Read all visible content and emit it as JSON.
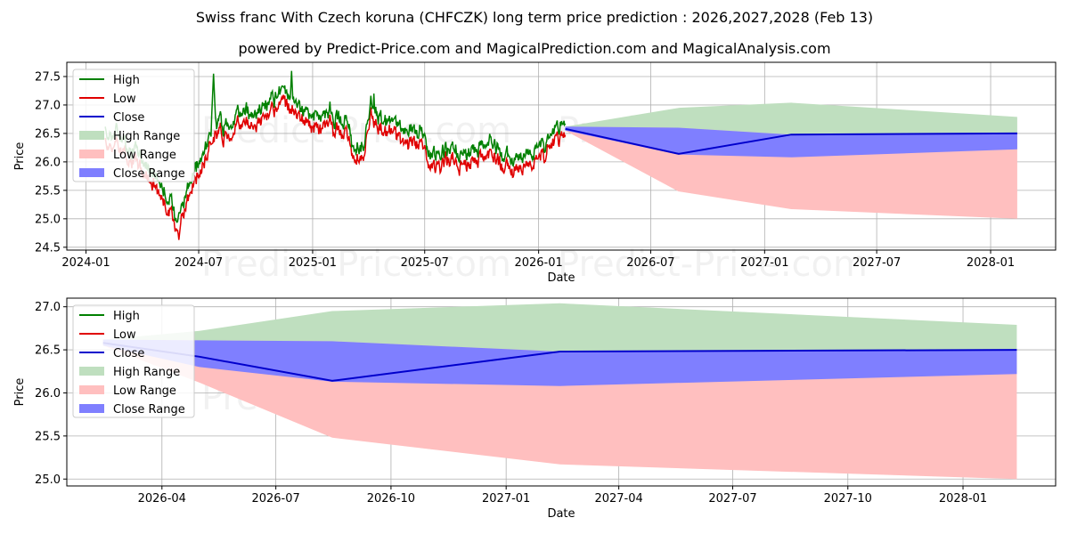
{
  "chart_title": "Swiss franc With Czech koruna (CHFCZK) long term price prediction : 2026,2027,2028 (Feb 13)",
  "chart_subtitle": "powered by Predict-Price.com and MagicalPrediction.com and MagicalAnalysis.com",
  "watermark": "Predict-Price.com",
  "legend": {
    "high": "High",
    "low": "Low",
    "close": "Close",
    "high_range": "High Range",
    "low_range": "Low Range",
    "close_range": "Close Range"
  },
  "colors": {
    "high": "#008000",
    "low": "#e00000",
    "close": "#0000cc",
    "high_range": "#bfdfbf",
    "low_range": "#ffbfbf",
    "close_range": "#7f7fff"
  },
  "chart_data": [
    {
      "type": "line",
      "panel": "history",
      "xlabel": "Date",
      "ylabel": "Price",
      "xticks": [
        "2024-01",
        "2024-07",
        "2025-01",
        "2025-07",
        "2026-01",
        "2026-07",
        "2027-01",
        "2027-07",
        "2028-01"
      ],
      "yticks": [
        "24.5",
        "25.0",
        "25.5",
        "26.0",
        "26.5",
        "27.0",
        "27.5"
      ],
      "xlim": [
        "2023-12-01",
        "2028-04-15"
      ],
      "ylim": [
        24.45,
        27.75
      ],
      "history_anchors": [
        [
          "2024-02-01",
          26.4
        ],
        [
          "2024-02-20",
          26.45
        ],
        [
          "2024-03-10",
          26.2
        ],
        [
          "2024-04-01",
          25.95
        ],
        [
          "2024-04-20",
          25.7
        ],
        [
          "2024-05-05",
          25.45
        ],
        [
          "2024-05-25",
          24.95
        ],
        [
          "2024-06-05",
          25.2
        ],
        [
          "2024-06-20",
          25.6
        ],
        [
          "2024-07-01",
          25.85
        ],
        [
          "2024-07-15",
          26.2
        ],
        [
          "2024-07-25",
          26.65
        ],
        [
          "2024-08-10",
          26.55
        ],
        [
          "2024-09-01",
          26.75
        ],
        [
          "2024-10-01",
          26.8
        ],
        [
          "2024-11-01",
          26.95
        ],
        [
          "2024-11-20",
          27.15
        ],
        [
          "2024-12-10",
          26.85
        ],
        [
          "2025-01-10",
          26.7
        ],
        [
          "2025-02-01",
          26.75
        ],
        [
          "2025-02-25",
          26.6
        ],
        [
          "2025-03-10",
          26.15
        ],
        [
          "2025-03-25",
          26.25
        ],
        [
          "2025-04-05",
          26.95
        ],
        [
          "2025-04-20",
          26.7
        ],
        [
          "2025-05-10",
          26.55
        ],
        [
          "2025-06-10",
          26.45
        ],
        [
          "2025-07-01",
          26.4
        ],
        [
          "2025-07-15",
          26.0
        ],
        [
          "2025-08-10",
          26.15
        ],
        [
          "2025-09-10",
          26.0
        ],
        [
          "2025-10-10",
          26.25
        ],
        [
          "2025-11-01",
          26.05
        ],
        [
          "2025-11-20",
          25.85
        ],
        [
          "2025-12-10",
          26.05
        ],
        [
          "2026-01-10",
          26.2
        ],
        [
          "2026-01-25",
          26.45
        ],
        [
          "2026-02-13",
          26.58
        ]
      ],
      "high_spikes": [
        [
          "2024-07-25",
          27.55
        ],
        [
          "2024-11-28",
          27.6
        ],
        [
          "2025-04-10",
          27.2
        ]
      ],
      "low_dips": [
        [
          "2024-05-30",
          24.63
        ]
      ],
      "forecast": {
        "dates": [
          "2026-02-13",
          "2026-08-15",
          "2027-02-13",
          "2028-02-13"
        ],
        "close": [
          26.58,
          26.14,
          26.48,
          26.5
        ],
        "high_range": [
          26.62,
          26.95,
          27.04,
          26.79
        ],
        "low_range": [
          26.55,
          25.48,
          25.17,
          25.0
        ],
        "close_range_upper": [
          26.62,
          26.6,
          26.48,
          26.5
        ],
        "close_range_lower": [
          26.55,
          26.13,
          26.08,
          26.22
        ]
      }
    },
    {
      "type": "line",
      "panel": "forecast",
      "xlabel": "Date",
      "ylabel": "Price",
      "xticks": [
        "2026-04",
        "2026-07",
        "2026-10",
        "2027-01",
        "2027-04",
        "2027-07",
        "2027-10",
        "2028-01"
      ],
      "yticks": [
        "25.0",
        "25.5",
        "26.0",
        "26.5",
        "27.0"
      ],
      "xlim": [
        "2026-01-15",
        "2028-03-15"
      ],
      "ylim": [
        24.92,
        27.1
      ],
      "forecast": {
        "dates": [
          "2026-02-13",
          "2026-05-01",
          "2026-08-15",
          "2027-02-13",
          "2028-02-13"
        ],
        "close": [
          26.58,
          26.42,
          26.14,
          26.48,
          26.5
        ],
        "high_range": [
          26.62,
          26.72,
          26.95,
          27.04,
          26.79
        ],
        "low_range": [
          26.55,
          26.12,
          25.48,
          25.17,
          25.0
        ],
        "close_range_upper": [
          26.62,
          26.61,
          26.6,
          26.48,
          26.5
        ],
        "close_range_lower": [
          26.55,
          26.3,
          26.13,
          26.08,
          26.22
        ]
      }
    }
  ]
}
